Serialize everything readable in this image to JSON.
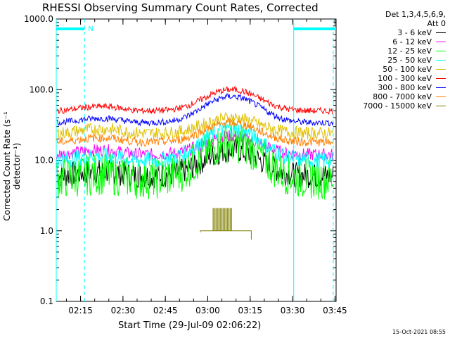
{
  "chart_data": {
    "type": "line",
    "title": "RHESSI Observing Summary Count Rates, Corrected",
    "xlabel": "Start Time (29-Jul-09 02:06:22)",
    "ylabel": "Corrected Count Rate (s⁻¹ detector⁻¹)",
    "yscale": "log",
    "ylim": [
      0.1,
      1000
    ],
    "xlim_minutes": [
      0,
      99
    ],
    "x_ticks": [
      "02:15",
      "02:30",
      "02:45",
      "03:00",
      "03:15",
      "03:30",
      "03:45"
    ],
    "x_tick_minutes": [
      8.6,
      23.6,
      38.6,
      53.6,
      68.6,
      83.6,
      98.6
    ],
    "y_ticks": [
      "0.1",
      "1.0",
      "10.0",
      "100.0",
      "1000.0"
    ],
    "y_tick_values": [
      0.1,
      1,
      10,
      100,
      1000
    ],
    "legend_header": [
      "Det 1,3,4,5,6,9,",
      "Att 0"
    ],
    "series": [
      {
        "name": "3 - 6 keV",
        "color": "#000000",
        "base": 6.0,
        "peak": 14.0,
        "noise": 0.06
      },
      {
        "name": "6 - 12 keV",
        "color": "#ff00ff",
        "base": 12.0,
        "peak": 22.0,
        "noise": 0.03
      },
      {
        "name": "12 - 25 keV",
        "color": "#00ff00",
        "base": 5.5,
        "peak": 18.0,
        "noise": 0.1
      },
      {
        "name": "25 - 50 keV",
        "color": "#00ffff",
        "base": 10.0,
        "peak": 28.0,
        "noise": 0.04
      },
      {
        "name": "50 - 100 keV",
        "color": "#e0c000",
        "base": 24.0,
        "peak": 40.0,
        "noise": 0.03
      },
      {
        "name": "100 - 300 keV",
        "color": "#ff0000",
        "base": 50.0,
        "peak": 100.0,
        "noise": 0.015
      },
      {
        "name": "300 - 800 keV",
        "color": "#0000ff",
        "base": 34.0,
        "peak": 80.0,
        "noise": 0.015
      },
      {
        "name": "800 - 7000 keV",
        "color": "#ff8000",
        "base": 18.0,
        "peak": 34.0,
        "noise": 0.02
      },
      {
        "name": "7000 - 15000 keV",
        "color": "#808000",
        "base": null,
        "peak": null,
        "noise": 0
      }
    ],
    "night_marker": "N",
    "night_intervals_minutes": [
      [
        0,
        10
      ],
      [
        84,
        99
      ]
    ],
    "saa_lines_minutes": [
      10,
      98
    ],
    "solid_lines_minutes": [
      0,
      84
    ],
    "timestamp": "15-Oct-2021 08:55"
  },
  "colors": {
    "background": "#ffffff",
    "axis": "#000000",
    "marker": "#00ffff"
  }
}
